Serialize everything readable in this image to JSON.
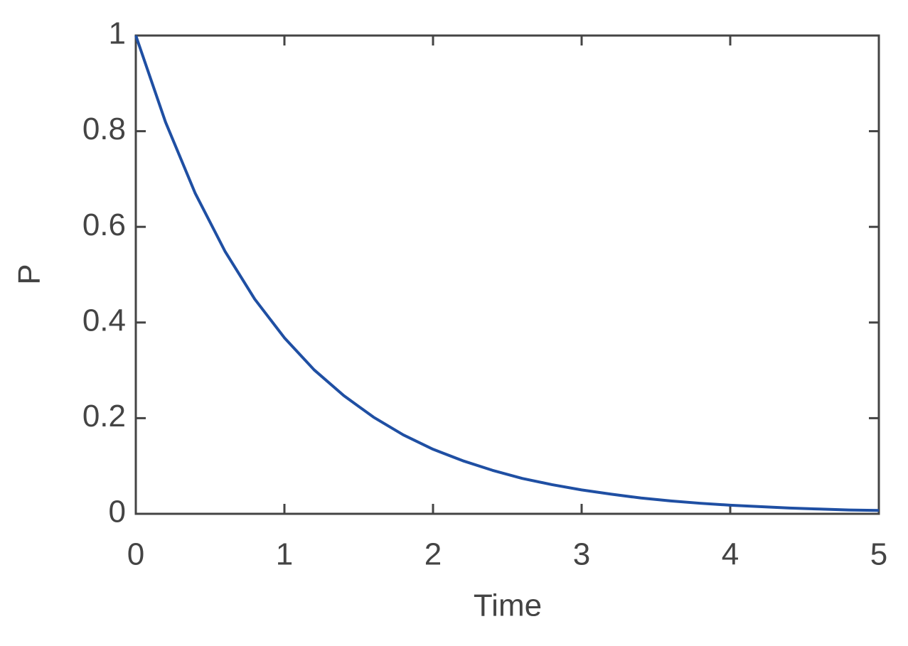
{
  "chart_data": {
    "type": "line",
    "x_label": "Time",
    "y_label": "P",
    "x": [
      0,
      0.2,
      0.4,
      0.6,
      0.8,
      1,
      1.2,
      1.4,
      1.6,
      1.8,
      2,
      2.2,
      2.4,
      2.6,
      2.8,
      3,
      3.2,
      3.4,
      3.6,
      3.8,
      4,
      4.2,
      4.4,
      4.6,
      4.8,
      5
    ],
    "series": [
      {
        "color": "#1f4fa3",
        "values": [
          1,
          0.819,
          0.67,
          0.549,
          0.449,
          0.368,
          0.301,
          0.247,
          0.202,
          0.165,
          0.135,
          0.111,
          0.091,
          0.074,
          0.061,
          0.05,
          0.041,
          0.033,
          0.027,
          0.022,
          0.018,
          0.015,
          0.012,
          0.01,
          0.008,
          0.007
        ]
      }
    ],
    "xlim": [
      0,
      5
    ],
    "xticks": [
      0,
      1,
      2,
      3,
      4,
      5
    ],
    "ylim": [
      0,
      1
    ],
    "yticks": [
      0,
      0.2,
      0.4,
      0.6,
      0.8,
      1
    ],
    "grid": false
  }
}
